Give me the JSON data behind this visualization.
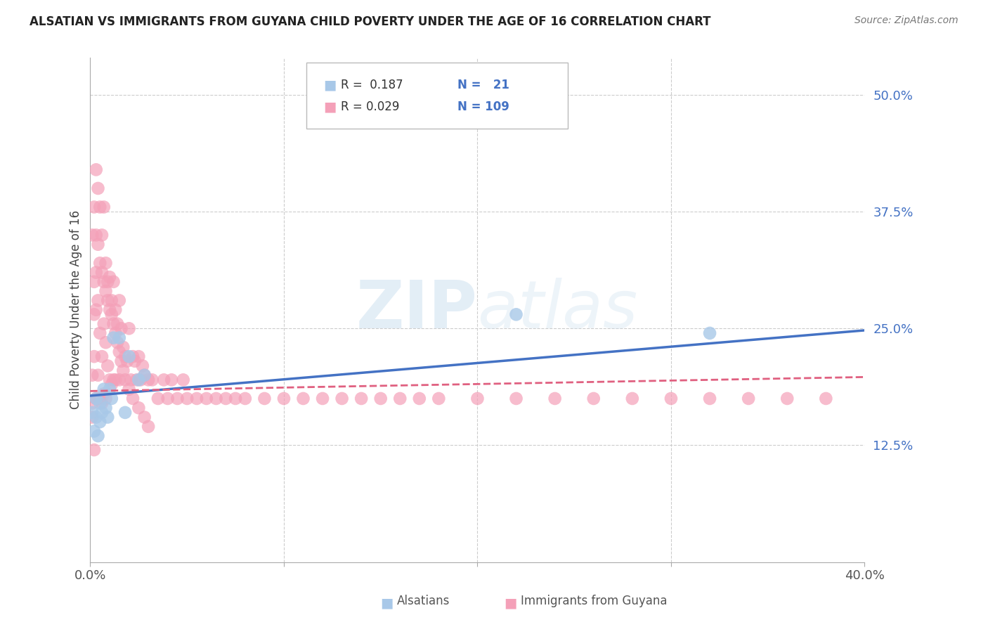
{
  "title": "ALSATIAN VS IMMIGRANTS FROM GUYANA CHILD POVERTY UNDER THE AGE OF 16 CORRELATION CHART",
  "source": "Source: ZipAtlas.com",
  "ylabel": "Child Poverty Under the Age of 16",
  "xlim": [
    0.0,
    0.4
  ],
  "ylim": [
    0.0,
    0.54
  ],
  "yticks": [
    0.125,
    0.25,
    0.375,
    0.5
  ],
  "yticklabels": [
    "12.5%",
    "25.0%",
    "37.5%",
    "50.0%"
  ],
  "label1": "Alsatians",
  "label2": "Immigrants from Guyana",
  "color1": "#a8c8e8",
  "color2": "#f4a0b8",
  "line_color1": "#4472c4",
  "line_color2": "#e06080",
  "background_color": "#ffffff",
  "alsatian_x": [
    0.001,
    0.002,
    0.003,
    0.003,
    0.004,
    0.005,
    0.005,
    0.006,
    0.007,
    0.008,
    0.009,
    0.01,
    0.011,
    0.012,
    0.015,
    0.018,
    0.02,
    0.025,
    0.028,
    0.22,
    0.32
  ],
  "alsatian_y": [
    0.16,
    0.14,
    0.175,
    0.155,
    0.135,
    0.17,
    0.15,
    0.16,
    0.185,
    0.165,
    0.155,
    0.185,
    0.175,
    0.24,
    0.24,
    0.16,
    0.22,
    0.195,
    0.2,
    0.265,
    0.245
  ],
  "guyana_x": [
    0.001,
    0.001,
    0.001,
    0.002,
    0.002,
    0.002,
    0.003,
    0.003,
    0.003,
    0.004,
    0.004,
    0.004,
    0.005,
    0.005,
    0.005,
    0.006,
    0.006,
    0.006,
    0.007,
    0.007,
    0.007,
    0.008,
    0.008,
    0.008,
    0.009,
    0.009,
    0.01,
    0.01,
    0.011,
    0.011,
    0.012,
    0.012,
    0.013,
    0.013,
    0.014,
    0.015,
    0.015,
    0.016,
    0.017,
    0.018,
    0.019,
    0.02,
    0.021,
    0.022,
    0.023,
    0.024,
    0.025,
    0.026,
    0.027,
    0.028,
    0.03,
    0.032,
    0.035,
    0.038,
    0.04,
    0.042,
    0.045,
    0.048,
    0.05,
    0.055,
    0.06,
    0.065,
    0.07,
    0.075,
    0.08,
    0.09,
    0.1,
    0.11,
    0.12,
    0.13,
    0.14,
    0.15,
    0.16,
    0.17,
    0.18,
    0.2,
    0.22,
    0.24,
    0.26,
    0.28,
    0.3,
    0.32,
    0.34,
    0.36,
    0.38,
    0.001,
    0.002,
    0.002,
    0.003,
    0.003,
    0.004,
    0.005,
    0.006,
    0.007,
    0.008,
    0.009,
    0.01,
    0.011,
    0.012,
    0.013,
    0.014,
    0.015,
    0.016,
    0.017,
    0.018,
    0.02,
    0.022,
    0.025,
    0.028,
    0.03
  ],
  "guyana_y": [
    0.2,
    0.17,
    0.155,
    0.38,
    0.22,
    0.12,
    0.42,
    0.27,
    0.175,
    0.4,
    0.28,
    0.2,
    0.38,
    0.245,
    0.175,
    0.35,
    0.22,
    0.17,
    0.38,
    0.255,
    0.18,
    0.32,
    0.235,
    0.175,
    0.3,
    0.21,
    0.305,
    0.195,
    0.28,
    0.19,
    0.3,
    0.195,
    0.27,
    0.195,
    0.255,
    0.28,
    0.195,
    0.25,
    0.23,
    0.22,
    0.215,
    0.25,
    0.195,
    0.22,
    0.215,
    0.195,
    0.22,
    0.195,
    0.21,
    0.2,
    0.195,
    0.195,
    0.175,
    0.195,
    0.175,
    0.195,
    0.175,
    0.195,
    0.175,
    0.175,
    0.175,
    0.175,
    0.175,
    0.175,
    0.175,
    0.175,
    0.175,
    0.175,
    0.175,
    0.175,
    0.175,
    0.175,
    0.175,
    0.175,
    0.175,
    0.175,
    0.175,
    0.175,
    0.175,
    0.175,
    0.175,
    0.175,
    0.175,
    0.175,
    0.175,
    0.35,
    0.3,
    0.265,
    0.35,
    0.31,
    0.34,
    0.32,
    0.31,
    0.3,
    0.29,
    0.28,
    0.27,
    0.265,
    0.255,
    0.245,
    0.235,
    0.225,
    0.215,
    0.205,
    0.195,
    0.185,
    0.175,
    0.165,
    0.155,
    0.145
  ],
  "line1_x0": 0.0,
  "line1_x1": 0.4,
  "line1_y0": 0.178,
  "line1_y1": 0.248,
  "line2_x0": 0.0,
  "line2_x1": 0.4,
  "line2_y0": 0.183,
  "line2_y1": 0.198
}
